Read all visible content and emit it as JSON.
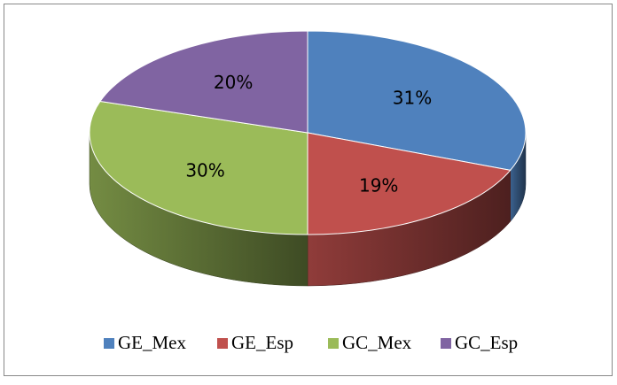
{
  "chart_data": {
    "type": "pie",
    "start_angle": 0,
    "direction": "clockwise",
    "three_d": true,
    "categories": [
      "GE_Mex",
      "GE_Esp",
      "GC_Mex",
      "GC_Esp"
    ],
    "values": [
      31,
      19,
      30,
      20
    ],
    "value_labels": [
      "31%",
      "19%",
      "30%",
      "20%"
    ],
    "colors": [
      "#4f81bd",
      "#c0504d",
      "#9bbb59",
      "#8064a2"
    ],
    "legend": "bottom"
  }
}
